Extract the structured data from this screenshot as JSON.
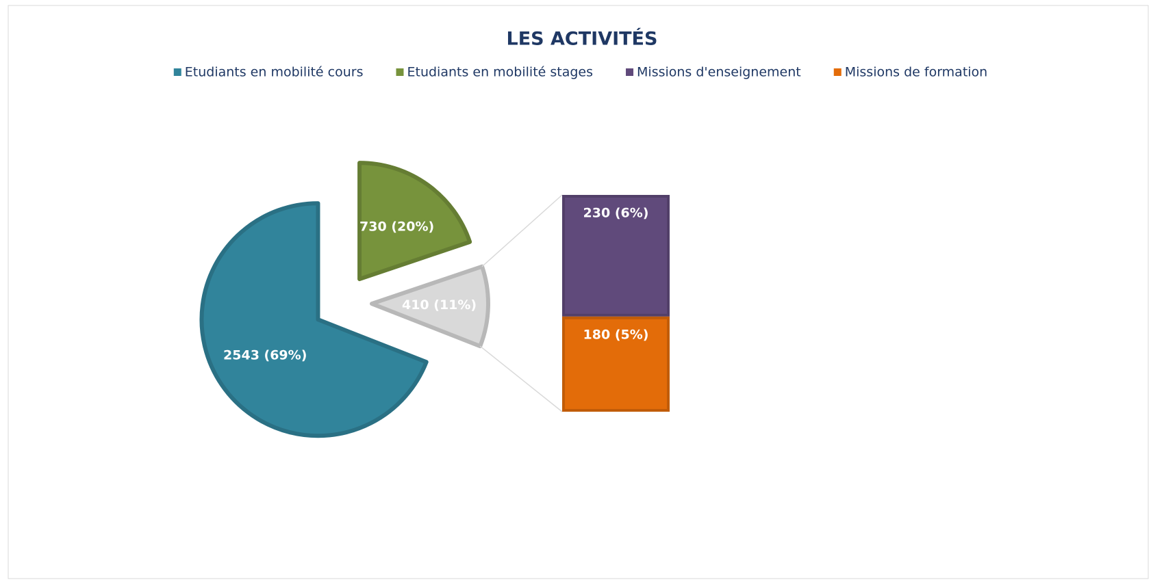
{
  "chart_data": {
    "type": "bar_of_pie",
    "title": "LES ACTIVITÉS",
    "categories": [
      "Etudiants en mobilité cours",
      "Etudiants en mobilité stages",
      "Missions d'enseignement",
      "Missions de formation"
    ],
    "values": [
      2543,
      730,
      230,
      180
    ],
    "value_labels": [
      "2543 (69%)",
      "730 (20%)",
      "230 (6%)",
      "180 (5%)"
    ],
    "colors": [
      "#31849b",
      "#77933c",
      "#604a7b",
      "#e36c09"
    ],
    "other": {
      "value": 410,
      "label": "410 (11%)",
      "color": "#d9d9d9"
    }
  }
}
